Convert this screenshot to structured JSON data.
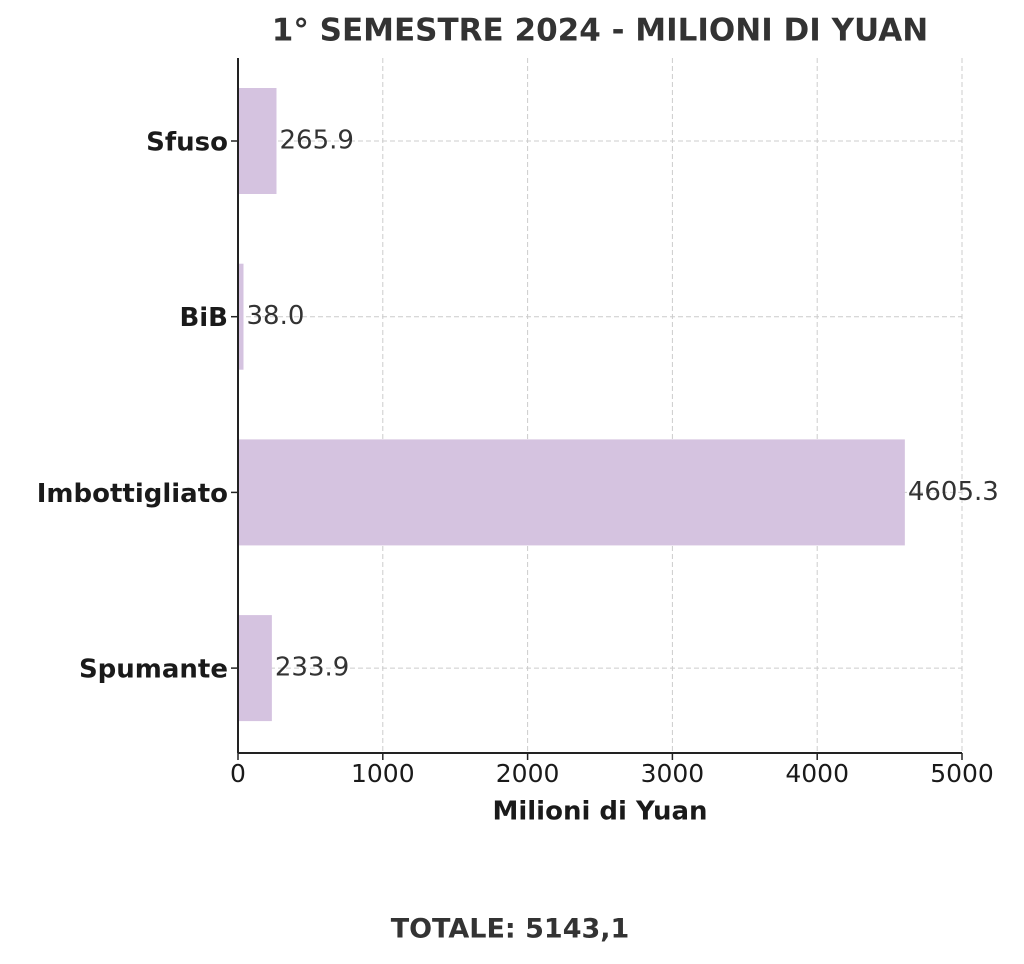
{
  "chart_data": {
    "type": "barh",
    "title": "1° SEMESTRE 2024 - MILIONI DI YUAN",
    "categories": [
      "Sfuso",
      "BiB",
      "Imbottigliato",
      "Spumante"
    ],
    "values": [
      265.9,
      38.0,
      4605.3,
      233.9
    ],
    "value_labels": [
      "265.9",
      "38.0",
      "4605.3",
      "233.9"
    ],
    "color": "#d5c3e0",
    "xlabel": "Milioni di Yuan",
    "xlim": [
      0,
      5000
    ],
    "xticks": [
      0,
      1000,
      2000,
      3000,
      4000,
      5000
    ],
    "grid": true,
    "annotation": "TOTALE: 5143,1"
  }
}
